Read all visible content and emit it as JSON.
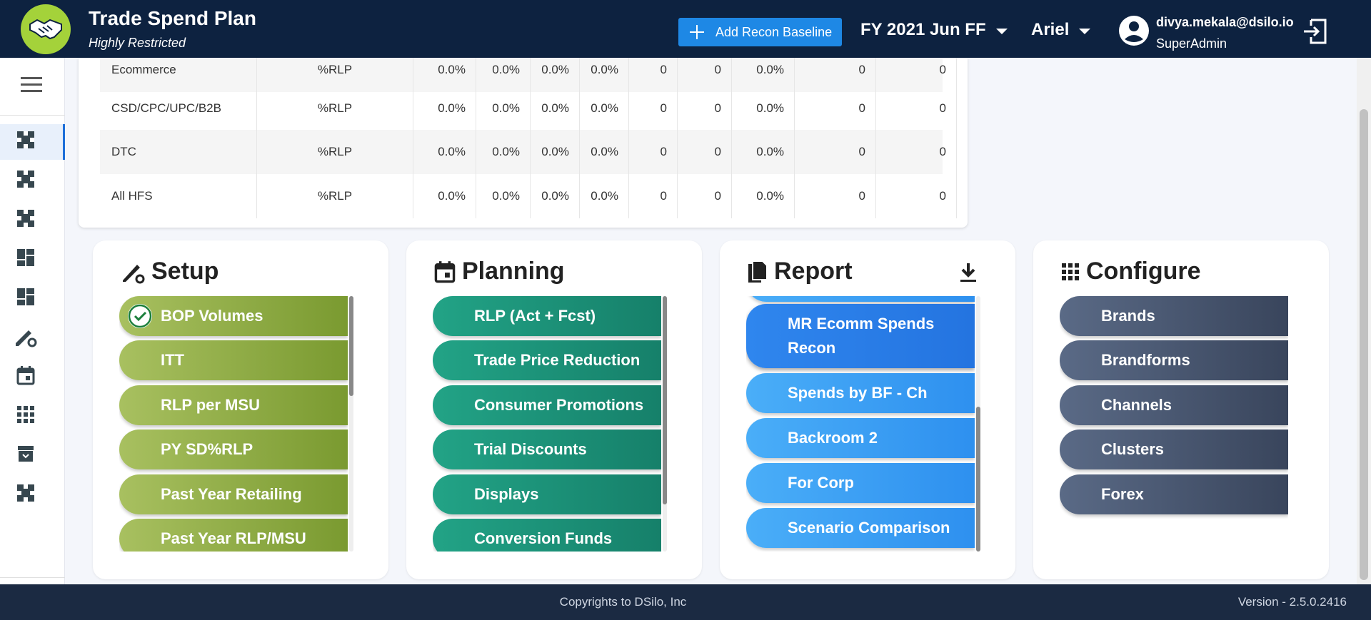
{
  "header": {
    "title": "Trade Spend Plan",
    "subtitle": "Highly Restricted",
    "add_button": "Add Recon Baseline",
    "fiscal_select": "FY 2021 Jun FF",
    "brand_select": "Ariel",
    "user_email": "divya.mekala@dsilo.io",
    "user_role": "SuperAdmin"
  },
  "table": {
    "rows": [
      {
        "name": "Ecommerce",
        "unit": "%RLP",
        "v": [
          "0.0%",
          "0.0%",
          "0.0%",
          "0.0%",
          "0",
          "0",
          "0.0%",
          "0",
          "0"
        ]
      },
      {
        "name": "CSD/CPC/UPC/B2B",
        "unit": "%RLP",
        "v": [
          "0.0%",
          "0.0%",
          "0.0%",
          "0.0%",
          "0",
          "0",
          "0.0%",
          "0",
          "0"
        ]
      },
      {
        "name": "DTC",
        "unit": "%RLP",
        "v": [
          "0.0%",
          "0.0%",
          "0.0%",
          "0.0%",
          "0",
          "0",
          "0.0%",
          "0",
          "0"
        ]
      },
      {
        "name": "All HFS",
        "unit": "%RLP",
        "v": [
          "0.0%",
          "0.0%",
          "0.0%",
          "0.0%",
          "0",
          "0",
          "0.0%",
          "0",
          "0"
        ]
      }
    ]
  },
  "setup": {
    "title": "Setup",
    "items": [
      "BOP Volumes",
      "ITT",
      "RLP per MSU",
      "PY SD%RLP",
      "Past Year Retailing",
      "Past Year RLP/MSU"
    ]
  },
  "planning": {
    "title": "Planning",
    "items": [
      "RLP (Act + Fcst)",
      "Trade Price Reduction",
      "Consumer Promotions",
      "Trial Discounts",
      "Displays",
      "Conversion Funds"
    ]
  },
  "report": {
    "title": "Report",
    "items": [
      "MR Ecomm Spends Recon",
      "Spends by BF - Ch",
      "Backroom 2",
      "For Corp",
      "Scenario Comparison"
    ]
  },
  "configure": {
    "title": "Configure",
    "items": [
      "Brands",
      "Brandforms",
      "Channels",
      "Clusters",
      "Forex"
    ]
  },
  "footer": {
    "copyright": "Copyrights to DSilo, Inc",
    "version": "Version - 2.5.0.2416"
  }
}
